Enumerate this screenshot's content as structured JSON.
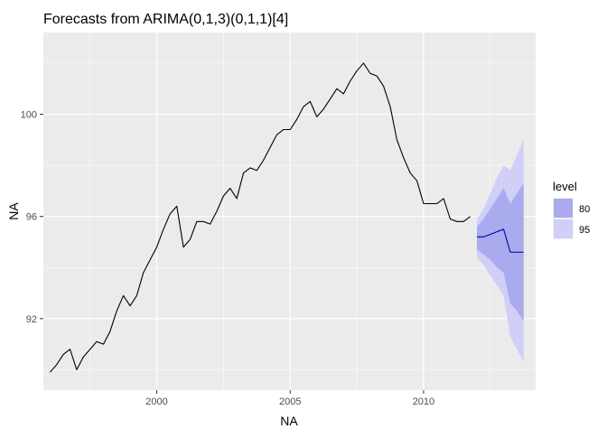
{
  "chart_data": {
    "type": "line",
    "title": "Forecasts from ARIMA(0,1,3)(0,1,1)[4]",
    "xlabel": "NA",
    "ylabel": "NA",
    "xlim": [
      1995.75,
      2014.2
    ],
    "ylim": [
      89.2,
      103.2
    ],
    "x_ticks": [
      2000,
      2005,
      2010
    ],
    "x_tick_labels": [
      "2000",
      "2005",
      "2010"
    ],
    "y_ticks": [
      92,
      96,
      100
    ],
    "y_tick_labels": [
      "92",
      "96",
      "100"
    ],
    "grid": true,
    "legend": {
      "title": "level",
      "position": "right",
      "entries": [
        {
          "label": "80",
          "color": "#aaaaee"
        },
        {
          "label": "95",
          "color": "#cfcff7"
        }
      ]
    },
    "colors": {
      "panel_background": "#ebebeb",
      "grid_major": "#ffffff",
      "observed_line": "#000000",
      "forecast_line": "#0000aa",
      "band_80": "#aaaaee",
      "band_95": "#cfcff7"
    },
    "series": [
      {
        "kind": "observed",
        "x": [
          1996.0,
          1996.25,
          1996.5,
          1996.75,
          1997.0,
          1997.25,
          1997.5,
          1997.75,
          1998.0,
          1998.25,
          1998.5,
          1998.75,
          1999.0,
          1999.25,
          1999.5,
          1999.75,
          2000.0,
          2000.25,
          2000.5,
          2000.75,
          2001.0,
          2001.25,
          2001.5,
          2001.75,
          2002.0,
          2002.25,
          2002.5,
          2002.75,
          2003.0,
          2003.25,
          2003.5,
          2003.75,
          2004.0,
          2004.25,
          2004.5,
          2004.75,
          2005.0,
          2005.25,
          2005.5,
          2005.75,
          2006.0,
          2006.25,
          2006.5,
          2006.75,
          2007.0,
          2007.25,
          2007.5,
          2007.75,
          2008.0,
          2008.25,
          2008.5,
          2008.75,
          2009.0,
          2009.25,
          2009.5,
          2009.75,
          2010.0,
          2010.25,
          2010.5,
          2010.75,
          2011.0,
          2011.25,
          2011.5,
          2011.75
        ],
        "y": [
          89.9,
          90.2,
          90.6,
          90.8,
          90.0,
          90.5,
          90.8,
          91.1,
          91.0,
          91.5,
          92.3,
          92.9,
          92.5,
          92.9,
          93.8,
          94.3,
          94.8,
          95.5,
          96.1,
          96.4,
          94.8,
          95.1,
          95.8,
          95.8,
          95.7,
          96.2,
          96.8,
          97.1,
          96.7,
          97.7,
          97.9,
          97.8,
          98.2,
          98.7,
          99.2,
          99.4,
          99.4,
          99.8,
          100.3,
          100.5,
          99.9,
          100.2,
          100.6,
          101.0,
          100.8,
          101.3,
          101.7,
          102.0,
          101.6,
          101.5,
          101.1,
          100.3,
          99.0,
          98.3,
          97.7,
          97.4,
          96.5,
          96.5,
          96.5,
          96.7,
          95.9,
          95.8,
          95.8,
          96.0
        ]
      },
      {
        "kind": "forecast",
        "x": [
          2012.0,
          2012.25,
          2012.5,
          2012.75,
          2013.0,
          2013.25,
          2013.5,
          2013.75
        ],
        "y": [
          95.2,
          95.2,
          95.3,
          95.4,
          95.5,
          94.6,
          94.6,
          94.6
        ],
        "lo80": [
          94.7,
          94.5,
          94.3,
          94.0,
          93.8,
          92.6,
          92.3,
          91.9
        ],
        "hi80": [
          95.6,
          95.9,
          96.3,
          96.7,
          97.1,
          96.5,
          96.9,
          97.3
        ],
        "lo95": [
          94.4,
          94.1,
          93.7,
          93.3,
          92.9,
          91.3,
          90.8,
          90.3
        ],
        "hi95": [
          95.9,
          96.3,
          96.9,
          97.5,
          98.0,
          97.8,
          98.4,
          99.0
        ]
      }
    ]
  }
}
